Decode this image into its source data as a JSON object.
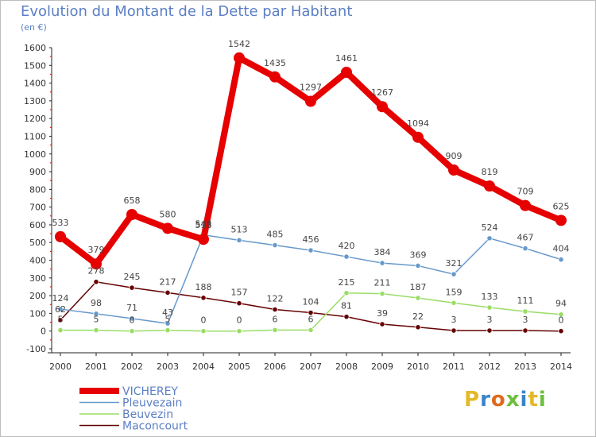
{
  "title": "Evolution du Montant de la Dette par Habitant",
  "unit": "(en €)",
  "logo": "Proxiti",
  "logo_colors": [
    "#e3b92a",
    "#3a84c9",
    "#e06a1e",
    "#6cbf3c",
    "#3a84c9",
    "#e3b92a",
    "#6cbf3c"
  ],
  "chart_data": {
    "type": "line",
    "x": [
      2000,
      2001,
      2002,
      2003,
      2004,
      2005,
      2006,
      2007,
      2008,
      2009,
      2010,
      2011,
      2012,
      2013,
      2014
    ],
    "ylim": [
      -100,
      1600
    ],
    "yticks": [
      -100,
      0,
      100,
      200,
      300,
      400,
      500,
      600,
      700,
      800,
      900,
      1000,
      1100,
      1200,
      1300,
      1400,
      1500,
      1600
    ],
    "grid": false,
    "legend_position": "bottom-left",
    "series": [
      {
        "name": "VICHEREY",
        "color": "#e60000",
        "values": [
          533,
          379,
          658,
          580,
          518,
          1542,
          1435,
          1297,
          1461,
          1267,
          1094,
          909,
          819,
          709,
          625
        ]
      },
      {
        "name": "Pleuvezain",
        "color": "#6699cc",
        "values": [
          124,
          98,
          71,
          43,
          543,
          513,
          485,
          456,
          420,
          384,
          369,
          321,
          524,
          467,
          404
        ]
      },
      {
        "name": "Beuvezin",
        "color": "#99dd66",
        "values": [
          5,
          5,
          0,
          5,
          0,
          0,
          6,
          6,
          215,
          211,
          187,
          159,
          133,
          111,
          94
        ]
      },
      {
        "name": "Maconcourt",
        "color": "#660000",
        "values": [
          62,
          278,
          245,
          217,
          188,
          157,
          122,
          104,
          81,
          39,
          22,
          3,
          3,
          3,
          0
        ]
      }
    ]
  }
}
